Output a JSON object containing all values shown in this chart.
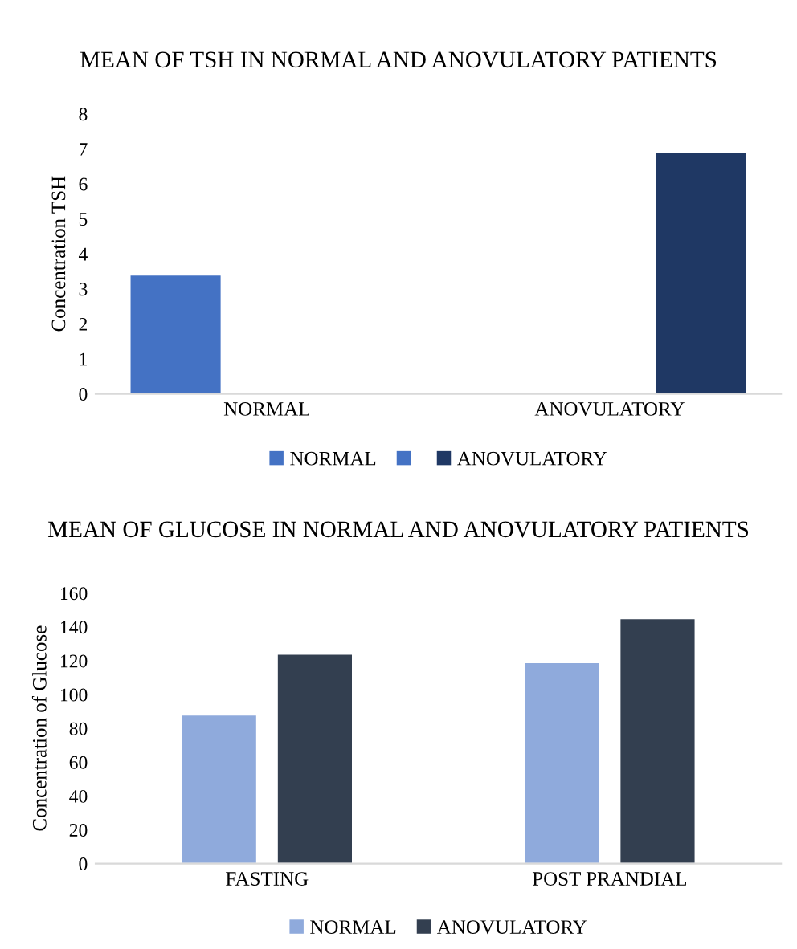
{
  "chart_data": [
    {
      "type": "bar",
      "title": "MEAN OF TSH IN NORMAL AND ANOVULATORY PATIENTS",
      "ylabel": "Concentration TSH",
      "categories": [
        "NORMAL",
        "ANOVULATORY"
      ],
      "series": [
        {
          "name": "NORMAL",
          "color": "#4472c4",
          "values": [
            3.4,
            null
          ]
        },
        {
          "color": "#4472c4",
          "values": [
            null,
            null
          ]
        },
        {
          "name": "ANOVULATORY",
          "color": "#1f3864",
          "values": [
            null,
            6.9
          ]
        }
      ],
      "ylim": [
        0,
        8
      ],
      "yticks": [
        0,
        1,
        2,
        3,
        4,
        5,
        6,
        7,
        8
      ],
      "grid": false,
      "legend": "bottom"
    },
    {
      "type": "bar",
      "title": "MEAN OF GLUCOSE IN NORMAL AND ANOVULATORY PATIENTS",
      "ylabel": "Concentration of Glucose",
      "categories": [
        "FASTING",
        "POST PRANDIAL"
      ],
      "series": [
        {
          "name": "NORMAL",
          "color": "#8faadc",
          "values": [
            88,
            119
          ]
        },
        {
          "name": "ANOVULATORY",
          "color": "#333f50",
          "values": [
            124,
            145
          ]
        }
      ],
      "ylim": [
        0,
        160
      ],
      "yticks": [
        0,
        20,
        40,
        60,
        80,
        100,
        120,
        140,
        160
      ],
      "grid": false,
      "legend": "bottom"
    }
  ]
}
